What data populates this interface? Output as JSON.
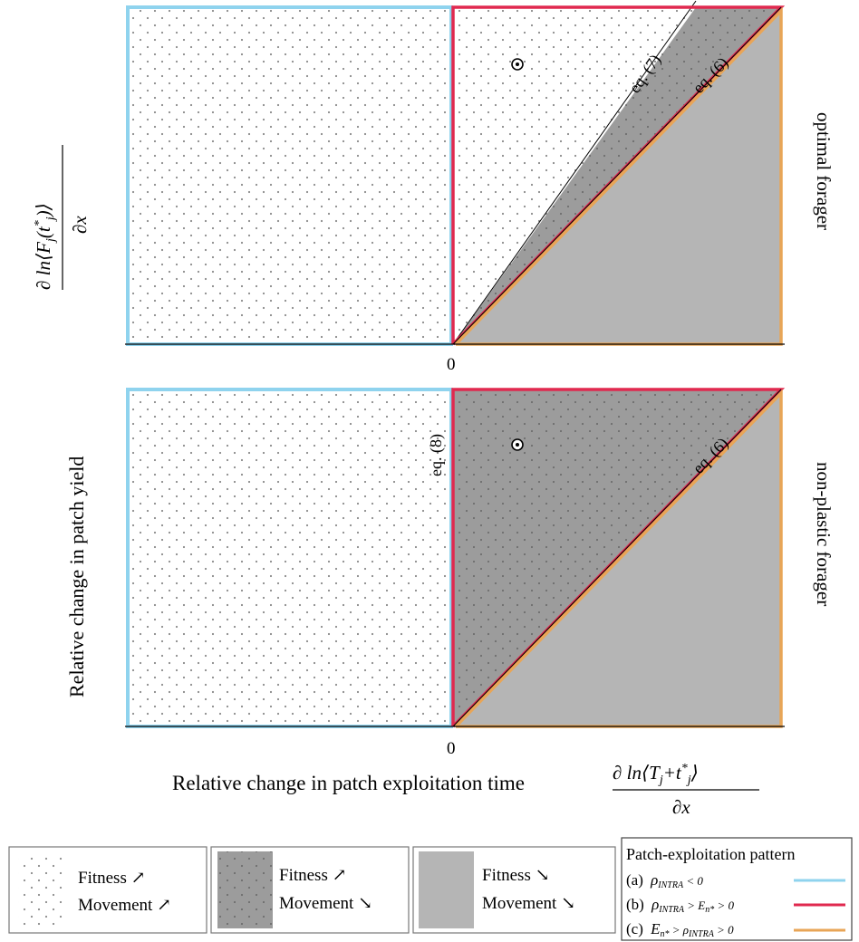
{
  "colors": {
    "blue": "#8fd3ee",
    "red": "#e0294f",
    "orange": "#e8a557",
    "dark_fill": "#9a9a9a",
    "light_fill": "#b5b5b5",
    "dot": "#8a8a8a"
  },
  "axes": {
    "origin_label_top": "0",
    "origin_label_bottom": "0",
    "y_label": "Relative change in patch yield",
    "y_math": {
      "numer": "∂ ln⟨F",
      "sub": "j",
      "paren": "(t",
      "sup": "*",
      "sub2": "j",
      "close": ")⟩",
      "denom": "∂x"
    },
    "x_label": "Relative change in patch exploitation time",
    "x_math": {
      "numer": "∂ ln⟨T",
      "sub": "j",
      "plus": "+t",
      "sup": "*",
      "sub2": "j",
      "close": "⟩",
      "denom": "∂x"
    }
  },
  "panels": {
    "top": {
      "side_label": "optimal forager",
      "line_labels": [
        "eq. (7)",
        "eq. (6)"
      ]
    },
    "bottom": {
      "side_label": "non-plastic forager",
      "line_labels": [
        "eq. (8)",
        "eq. (6)"
      ]
    }
  },
  "legend": {
    "boxes": [
      {
        "fitness": "Fitness ↗",
        "movement": "Movement ↗"
      },
      {
        "fitness": "Fitness ↗",
        "movement": "Movement ↘"
      },
      {
        "fitness": "Fitness ↘",
        "movement": "Movement ↘"
      }
    ],
    "pattern_title": "Patch-exploitation pattern",
    "patterns": [
      {
        "tag": "(a)",
        "expr": "ρ",
        "sub": "INTRA",
        "rest": " < 0",
        "color": "#8fd3ee"
      },
      {
        "tag": "(b)",
        "expr": "ρ",
        "sub": "INTRA",
        "rest": " > E",
        "sub2": "n*",
        "rest2": " > 0",
        "color": "#e0294f"
      },
      {
        "tag": "(c)",
        "expr": "E",
        "sub": "n*",
        "rest": " > ρ",
        "sub2": "INTRA",
        "rest2": " > 0",
        "color": "#e8a557"
      }
    ]
  }
}
